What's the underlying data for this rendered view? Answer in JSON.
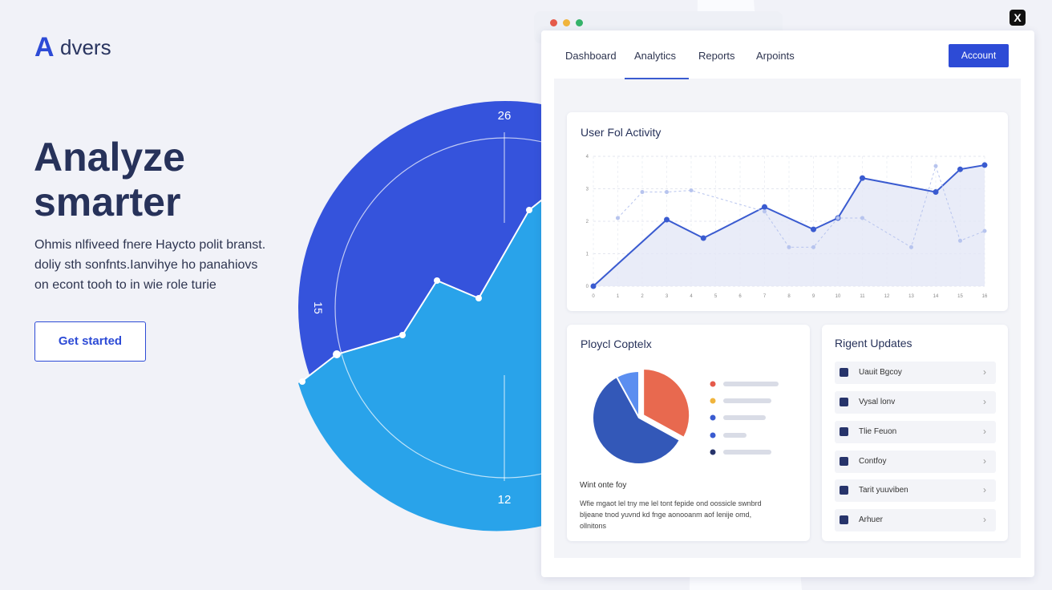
{
  "brand": {
    "logo_letter": "A",
    "name": "dvers"
  },
  "hero": {
    "title_lines": [
      "Analyze",
      "smarter"
    ],
    "body_lines": [
      "Ohmis nlfiveed fnere Haycto polit branst.",
      "doliy sth sonfnts.Ianvihye ho panahiovs",
      "on econt tooh to in wie role turie"
    ],
    "cta": "Get started"
  },
  "dial": {
    "labels": [
      "26",
      "15",
      "12"
    ]
  },
  "window": {
    "close": "X",
    "nav": [
      "Dashboard",
      "Analytics",
      "Reports",
      "Arpoints"
    ],
    "account": "Account"
  },
  "activity": {
    "title": "User Fol Activity",
    "type": "line",
    "xlim": [
      0,
      16
    ],
    "ylim": [
      0,
      4
    ],
    "xticks": [
      0,
      1,
      2,
      3,
      4,
      5,
      6,
      7,
      8,
      9,
      10,
      11,
      12,
      13,
      14,
      15,
      16
    ],
    "yticks": [
      0,
      1,
      2,
      3,
      4
    ],
    "series": [
      {
        "color": "#3a5bd0",
        "x": [
          0,
          3,
          4.5,
          7,
          9,
          10,
          11,
          14,
          15,
          16
        ],
        "values": [
          0,
          2.05,
          1.48,
          2.44,
          1.75,
          2.1,
          3.33,
          2.9,
          3.6,
          3.73
        ]
      },
      {
        "color": "#b7c4ee",
        "x": [
          1,
          2,
          3,
          4,
          7,
          8,
          9,
          10,
          11,
          13,
          14,
          15,
          16
        ],
        "values": [
          2.1,
          2.9,
          2.9,
          2.95,
          2.3,
          1.2,
          1.2,
          2.1,
          2.1,
          1.2,
          3.7,
          1.4,
          1.7
        ]
      }
    ]
  },
  "project": {
    "title": "Ploycl Coptelx",
    "type": "pie",
    "values": [
      33,
      59,
      8
    ],
    "colors": [
      "#e8694f",
      "#3358b8",
      "#5b8ef0"
    ],
    "note_title": "Wint onte foy",
    "note_lines": [
      "Wfie mgaot lel tny me lel tont fepide ond oossicle swnbrd",
      "bljeane tnod yuvnd kd fnge aonooanm aof Ienije omd,",
      "ollnitons"
    ]
  },
  "updates": {
    "title": "Rigent Updates",
    "items": [
      "Uauit Bgcoy",
      "Vysal lonv",
      "Tlie Feuon",
      "Contfoy",
      "Tarit yuuviben",
      "Arhuer"
    ]
  }
}
